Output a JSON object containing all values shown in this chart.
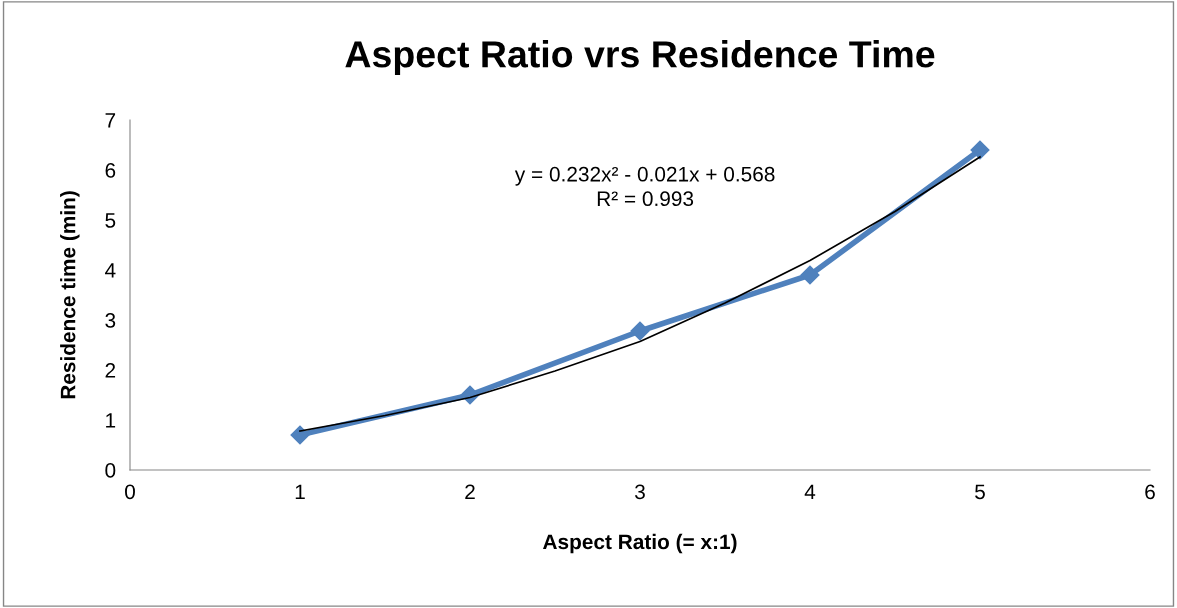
{
  "chart_data": {
    "type": "line",
    "title": "Aspect Ratio vrs Residence Time",
    "xlabel": "Aspect Ratio (= x:1)",
    "ylabel": "Residence time (min)",
    "xlim": [
      0,
      6
    ],
    "xticks": [
      0,
      1,
      2,
      3,
      4,
      5,
      6
    ],
    "ylim": [
      0,
      7
    ],
    "yticks": [
      0,
      1,
      2,
      3,
      4,
      5,
      6,
      7
    ],
    "grid": false,
    "legend": false,
    "annotations": [
      "y = 0.232x² - 0.021x + 0.568",
      "R² = 0.993"
    ],
    "series": [
      {
        "color": "#4f81bd",
        "marker": "diamond",
        "x": [
          1,
          2,
          3,
          4,
          5
        ],
        "values": [
          0.7,
          1.5,
          2.78,
          3.9,
          6.4
        ]
      },
      {
        "color": "#000000",
        "marker": "none",
        "x": [
          1,
          1.5,
          2,
          2.5,
          3,
          3.5,
          4,
          4.5,
          5
        ],
        "values": [
          0.78,
          1.09,
          1.45,
          1.98,
          2.57,
          3.34,
          4.19,
          5.17,
          6.26
        ]
      }
    ]
  }
}
